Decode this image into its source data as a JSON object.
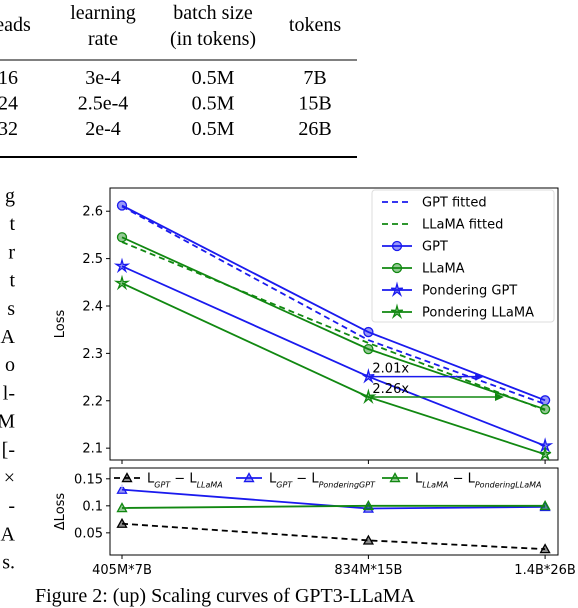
{
  "table": {
    "header": [
      [
        "heads"
      ],
      [
        "learning",
        "rate"
      ],
      [
        "batch size",
        "(in tokens)"
      ],
      [
        "tokens"
      ]
    ],
    "rows": [
      [
        "16",
        "3e-4",
        "0.5M",
        "7B"
      ],
      [
        "24",
        "2.5e-4",
        "0.5M",
        "15B"
      ],
      [
        "32",
        "2e-4",
        "0.5M",
        "26B"
      ]
    ]
  },
  "side_text": [
    "g",
    "t",
    "r",
    "t",
    "s",
    "A",
    "o",
    "l-",
    "M",
    "[-",
    "×",
    "-",
    "A",
    "s."
  ],
  "caption": "Figure 2: (up) Scaling curves of GPT3-LLaMA",
  "chart_data": [
    {
      "type": "line",
      "ylabel": "Loss",
      "xscale": "log",
      "x": [
        405,
        834,
        1400
      ],
      "xlim": [
        391,
        1454
      ],
      "ylim": [
        2.075,
        2.649
      ],
      "yticks": [
        2.1,
        2.2,
        2.3,
        2.4,
        2.5,
        2.6
      ],
      "legend": "upper right",
      "series": [
        {
          "name": "GPT fitted",
          "color": "#1a1aee",
          "dash": true,
          "marker": null,
          "values": [
            2.61,
            2.328,
            2.193
          ]
        },
        {
          "name": "LLaMA fitted",
          "color": "#118811",
          "dash": true,
          "marker": null,
          "values": [
            2.535,
            2.322,
            2.18
          ]
        },
        {
          "name": "GPT",
          "color": "#1a1aee",
          "dash": false,
          "marker": "o",
          "values": [
            2.612,
            2.345,
            2.201
          ]
        },
        {
          "name": "LLaMA",
          "color": "#118811",
          "dash": false,
          "marker": "o",
          "values": [
            2.545,
            2.309,
            2.182
          ]
        },
        {
          "name": "Pondering GPT",
          "color": "#1a1aee",
          "dash": false,
          "marker": "*",
          "values": [
            2.484,
            2.251,
            2.105
          ]
        },
        {
          "name": "Pondering LLaMA",
          "color": "#118811",
          "dash": false,
          "marker": "*",
          "values": [
            2.448,
            2.208,
            2.087
          ]
        }
      ],
      "annotations": [
        {
          "text": "2.01x",
          "color": "#1a1aee",
          "from": [
            834,
            2.251
          ],
          "to": [
            1171,
            2.251
          ]
        },
        {
          "text": "2.26x",
          "color": "#118811",
          "from": [
            834,
            2.208
          ],
          "to": [
            1241,
            2.208
          ]
        }
      ]
    },
    {
      "type": "line",
      "ylabel": "ΔLoss",
      "xscale": "log",
      "x": [
        405,
        834,
        1400
      ],
      "xlim": [
        391,
        1454
      ],
      "ylim": [
        0.009,
        0.17
      ],
      "yticks": [
        0.05,
        0.1,
        0.15
      ],
      "xticks": [
        {
          "value": 405,
          "label": "405M*7B"
        },
        {
          "value": 834,
          "label": "834M*15B"
        },
        {
          "value": 1400,
          "label": "1.4B*26B"
        }
      ],
      "legend": "upper center",
      "series": [
        {
          "name": "L_{GPT} − L_{LLaMA}",
          "color": "#000000",
          "dash": true,
          "marker": "^",
          "values": [
            0.067,
            0.036,
            0.02
          ]
        },
        {
          "name": "L_{GPT} − L_{PonderingGPT}",
          "color": "#1a1aee",
          "dash": false,
          "marker": "^",
          "values": [
            0.13,
            0.095,
            0.098
          ]
        },
        {
          "name": "L_{LLaMA} − L_{PonderingLLaMA}",
          "color": "#118811",
          "dash": false,
          "marker": "^",
          "values": [
            0.096,
            0.1,
            0.1
          ]
        }
      ]
    }
  ]
}
